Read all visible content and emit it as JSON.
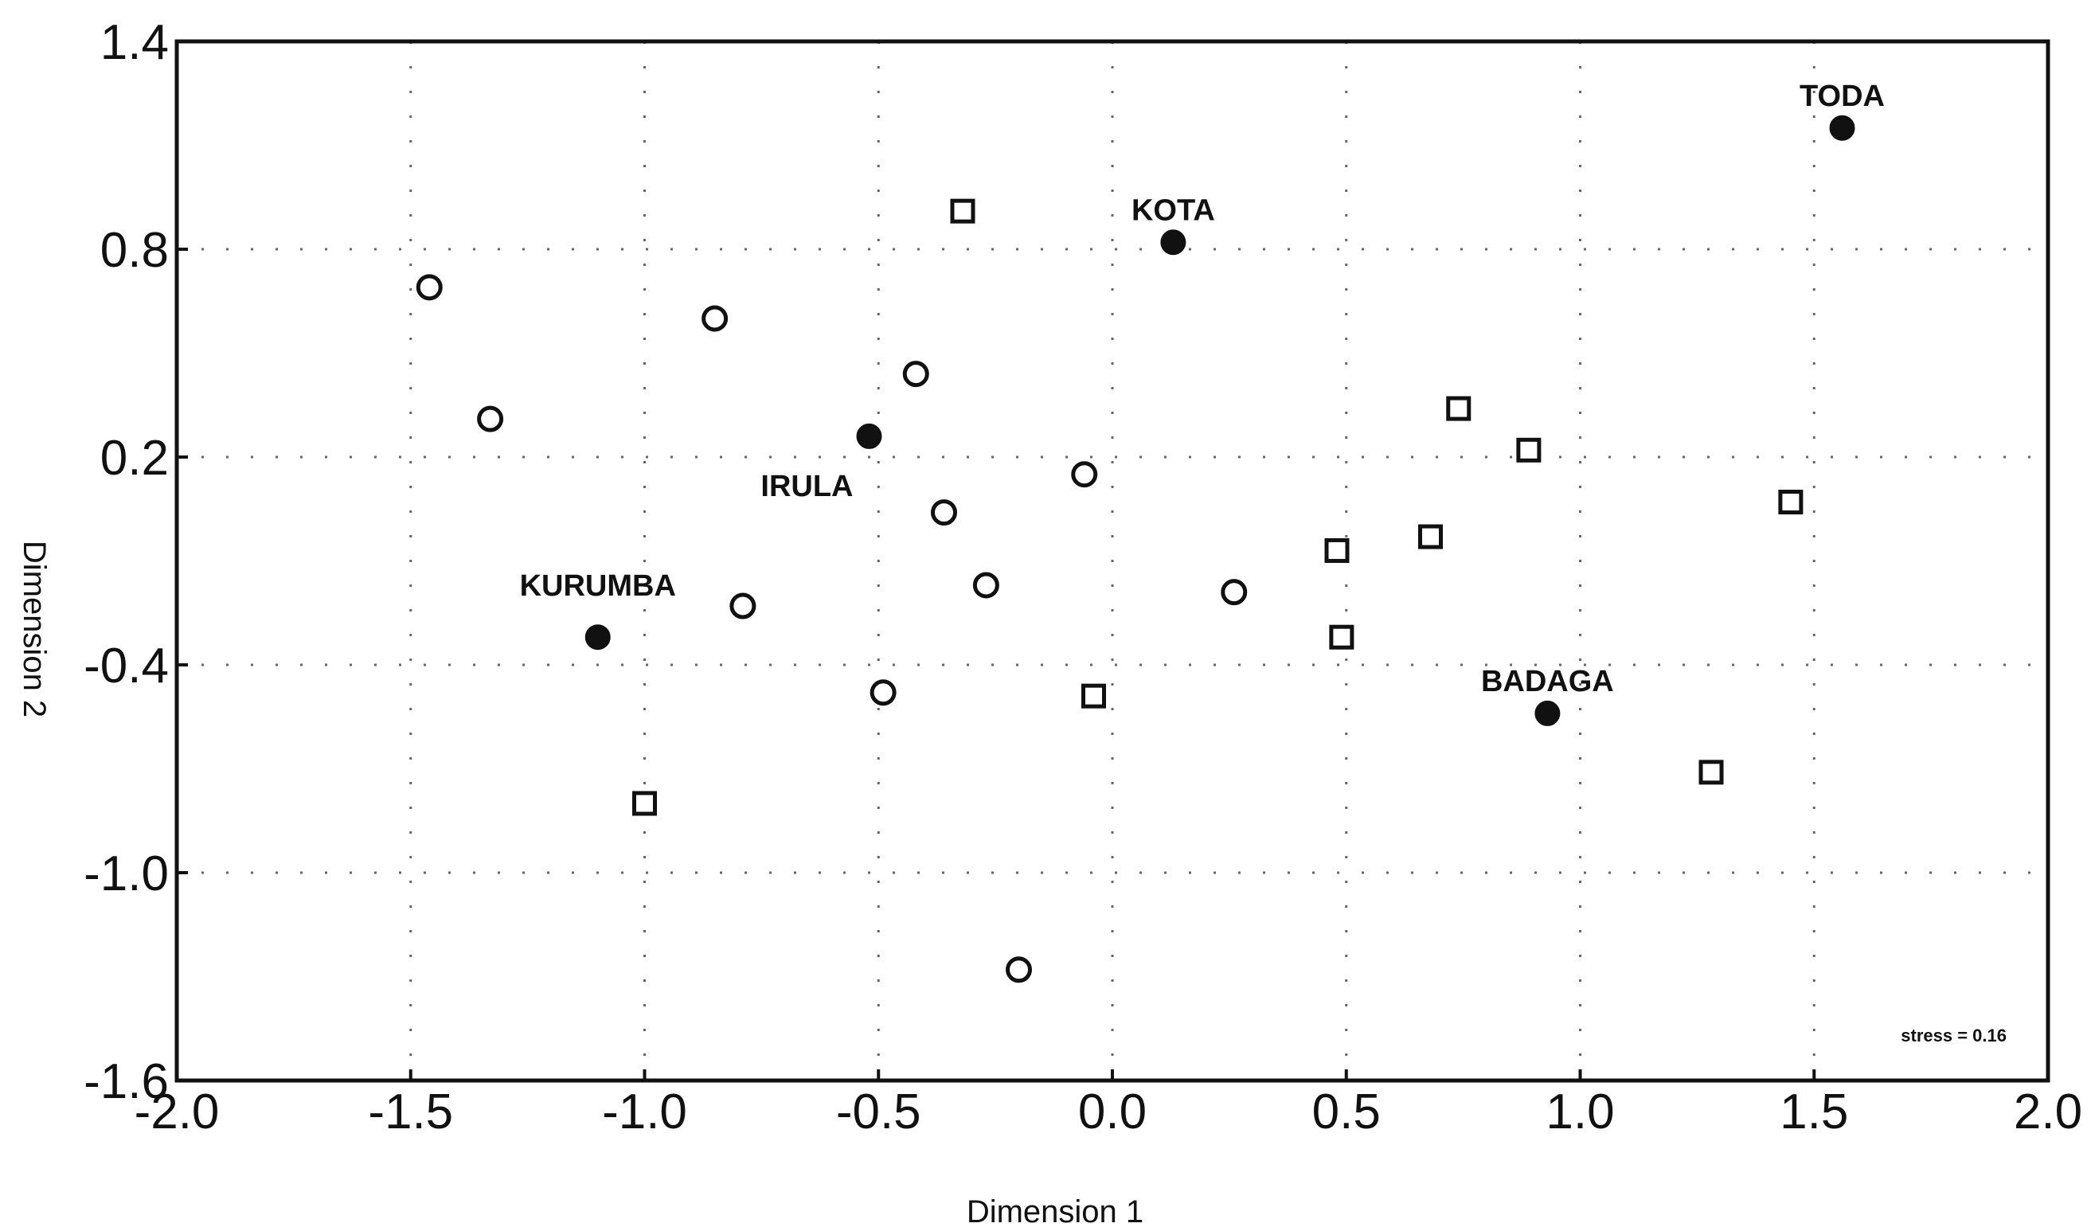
{
  "chart_data": {
    "type": "scatter",
    "title": "",
    "xlabel": "Dimension 1",
    "ylabel": "Dimension 2",
    "xlim": [
      -2.0,
      2.0
    ],
    "ylim": [
      -1.6,
      1.4
    ],
    "xticks": [
      "-2.0",
      "-1.5",
      "-1.0",
      "-0.5",
      "0.0",
      "0.5",
      "1.0",
      "1.5",
      "2.0"
    ],
    "yticks": [
      "1.4",
      "0.8",
      "0.2",
      "-0.4",
      "-1.0",
      "-1.6"
    ],
    "xtick_values": [
      -2.0,
      -1.5,
      -1.0,
      -0.5,
      0.0,
      0.5,
      1.0,
      1.5,
      2.0
    ],
    "ytick_values": [
      1.4,
      0.8,
      0.2,
      -0.4,
      -1.0,
      -1.6
    ],
    "grid": "dotted",
    "annotation": "stress = 0.16",
    "series": [
      {
        "marker": "filled-circle",
        "points": [
          {
            "x": 1.56,
            "y": 1.15,
            "label": "TODA"
          },
          {
            "x": 0.13,
            "y": 0.82,
            "label": "KOTA"
          },
          {
            "x": -0.52,
            "y": 0.26,
            "label": "IRULA"
          },
          {
            "x": -1.1,
            "y": -0.32,
            "label": "KURUMBA"
          },
          {
            "x": 0.93,
            "y": -0.54,
            "label": "BADAGA"
          }
        ]
      },
      {
        "marker": "open-circle",
        "points": [
          {
            "x": -1.46,
            "y": 0.69
          },
          {
            "x": -1.33,
            "y": 0.31
          },
          {
            "x": -0.85,
            "y": 0.6
          },
          {
            "x": -0.42,
            "y": 0.44
          },
          {
            "x": -0.06,
            "y": 0.15
          },
          {
            "x": -0.36,
            "y": 0.04
          },
          {
            "x": -0.27,
            "y": -0.17
          },
          {
            "x": -0.79,
            "y": -0.23
          },
          {
            "x": 0.26,
            "y": -0.19
          },
          {
            "x": -0.49,
            "y": -0.48
          },
          {
            "x": -0.2,
            "y": -1.28
          }
        ]
      },
      {
        "marker": "open-square",
        "points": [
          {
            "x": -0.32,
            "y": 0.91
          },
          {
            "x": 0.74,
            "y": 0.34
          },
          {
            "x": 0.89,
            "y": 0.22
          },
          {
            "x": 1.45,
            "y": 0.07
          },
          {
            "x": 0.68,
            "y": -0.03
          },
          {
            "x": 0.48,
            "y": -0.07
          },
          {
            "x": 0.49,
            "y": -0.32
          },
          {
            "x": -0.04,
            "y": -0.49
          },
          {
            "x": 1.28,
            "y": -0.71
          },
          {
            "x": -1.0,
            "y": -0.8
          }
        ]
      }
    ]
  }
}
